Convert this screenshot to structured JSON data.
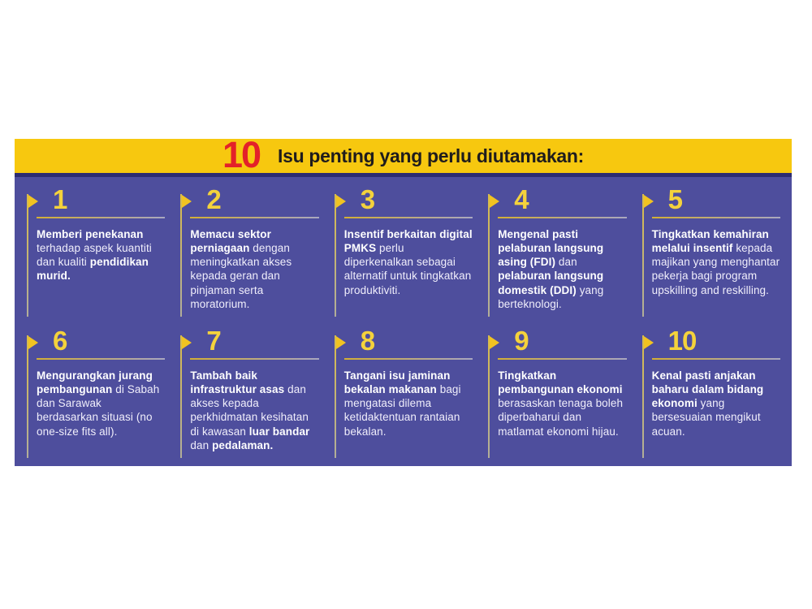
{
  "page": {
    "background": "#ffffff"
  },
  "header": {
    "badge": "10",
    "title": "Isu penting yang perlu diutamakan:",
    "bg_color": "#f7c80f",
    "badge_color": "#e32129",
    "title_color": "#1f1c1d"
  },
  "board": {
    "bg_color": "#4e4e9d",
    "top_border_color": "#2d2c72",
    "accent_yellow": "#f4d23c",
    "flag_icon_color": "#f1c322",
    "items": [
      {
        "number": "1",
        "segments": [
          {
            "text": "Memberi penekanan",
            "bold": true
          },
          {
            "text": " terhadap aspek kuantiti dan kualiti ",
            "bold": false
          },
          {
            "text": "pendidikan murid.",
            "bold": true
          }
        ]
      },
      {
        "number": "2",
        "segments": [
          {
            "text": "Memacu sektor perniagaan",
            "bold": true
          },
          {
            "text": " dengan meningkatkan akses kepada geran dan pinjaman serta moratorium.",
            "bold": false
          }
        ]
      },
      {
        "number": "3",
        "segments": [
          {
            "text": "Insentif berkaitan digital PMKS",
            "bold": true
          },
          {
            "text": " perlu diperkenalkan sebagai alternatif untuk tingkatkan produktiviti.",
            "bold": false
          }
        ]
      },
      {
        "number": "4",
        "segments": [
          {
            "text": "Mengenal pasti pelaburan langsung asing (FDI)",
            "bold": true
          },
          {
            "text": " dan ",
            "bold": false
          },
          {
            "text": "pelaburan langsung domestik (DDI)",
            "bold": true
          },
          {
            "text": " yang berteknologi.",
            "bold": false
          }
        ]
      },
      {
        "number": "5",
        "segments": [
          {
            "text": "Tingkatkan kemahiran melalui insentif",
            "bold": true
          },
          {
            "text": " kepada majikan yang menghantar pekerja bagi program upskilling and reskilling.",
            "bold": false
          }
        ]
      },
      {
        "number": "6",
        "segments": [
          {
            "text": "Mengurangkan jurang pembangunan",
            "bold": true
          },
          {
            "text": " di Sabah dan Sarawak berdasarkan situasi (no one-size fits all).",
            "bold": false
          }
        ]
      },
      {
        "number": "7",
        "segments": [
          {
            "text": "Tambah baik infrastruktur asas",
            "bold": true
          },
          {
            "text": " dan akses kepada perkhidmatan kesihatan di kawasan ",
            "bold": false
          },
          {
            "text": "luar bandar",
            "bold": true
          },
          {
            "text": " dan ",
            "bold": false
          },
          {
            "text": "pedalaman.",
            "bold": true
          }
        ]
      },
      {
        "number": "8",
        "segments": [
          {
            "text": "Tangani isu jaminan bekalan makanan",
            "bold": true
          },
          {
            "text": " bagi mengatasi dilema ketidaktentuan rantaian bekalan.",
            "bold": false
          }
        ]
      },
      {
        "number": "9",
        "segments": [
          {
            "text": "Tingkatkan pembangunan ekonomi",
            "bold": true
          },
          {
            "text": " berasaskan tenaga boleh diperbaharui dan matlamat ekonomi hijau.",
            "bold": false
          }
        ]
      },
      {
        "number": "10",
        "segments": [
          {
            "text": "Kenal pasti anjakan baharu dalam bidang ekonomi",
            "bold": true
          },
          {
            "text": " yang bersesuaian mengikut acuan.",
            "bold": false
          }
        ]
      }
    ]
  }
}
